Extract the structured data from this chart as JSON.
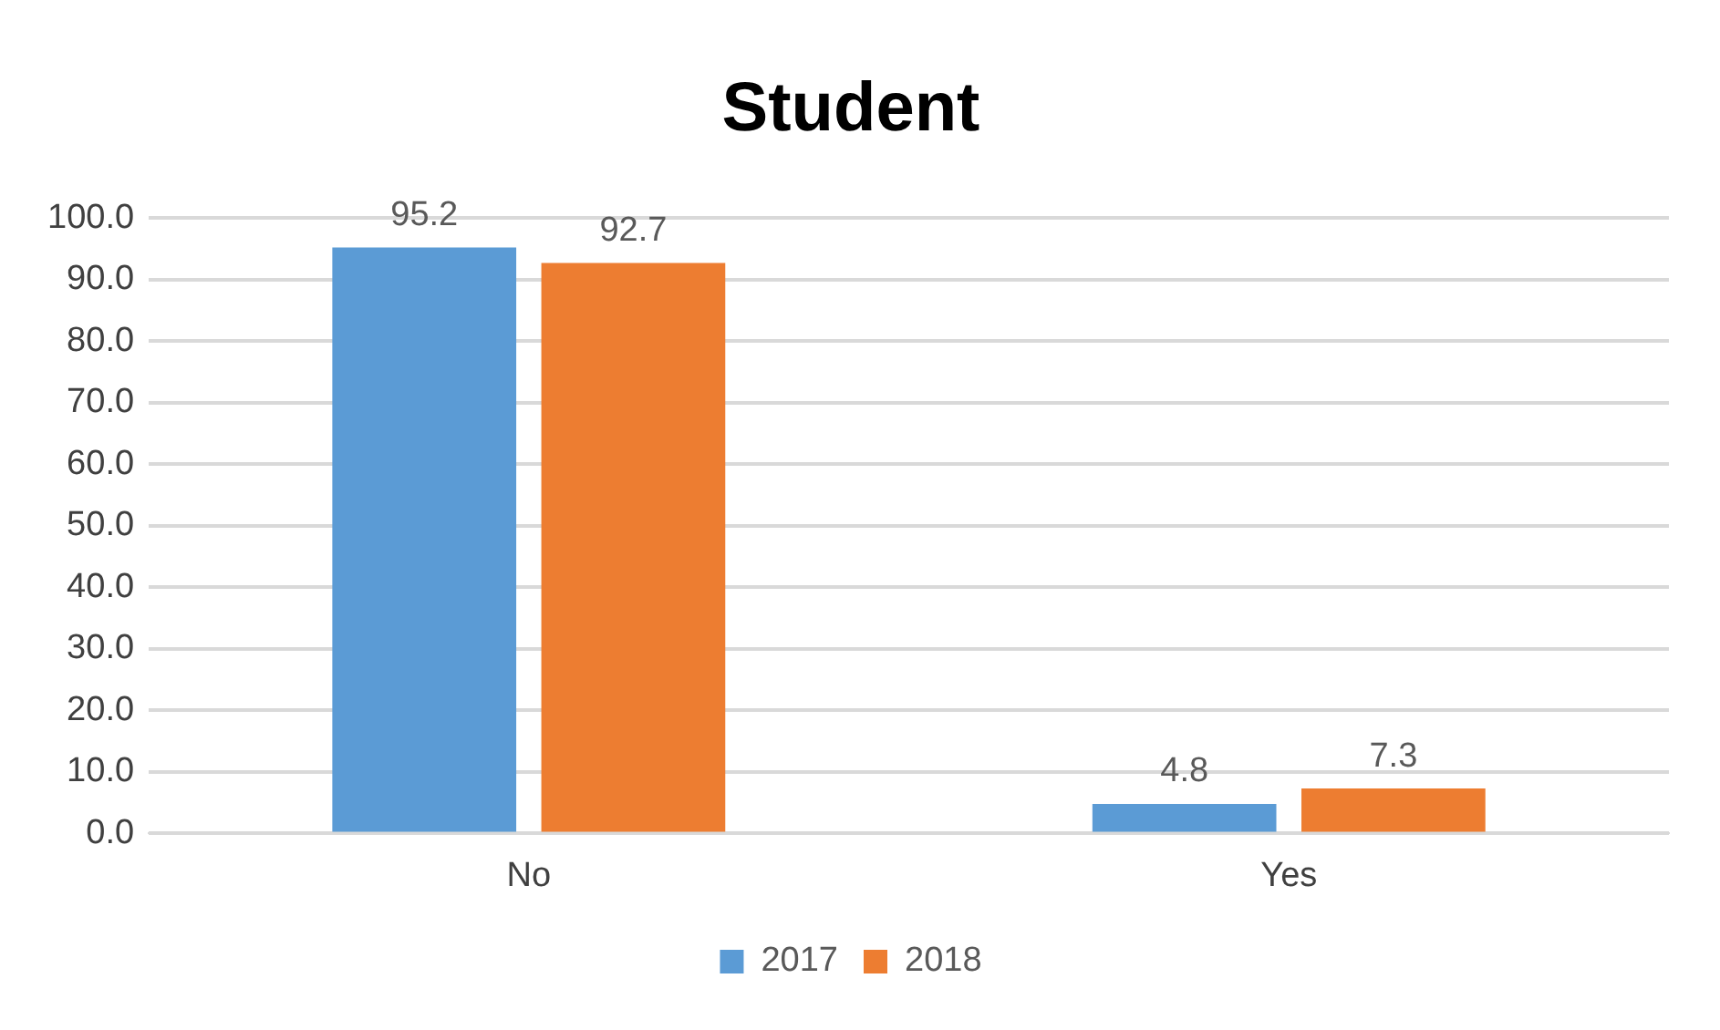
{
  "chart_data": {
    "type": "bar",
    "title": "Student",
    "categories": [
      "No",
      "Yes"
    ],
    "series": [
      {
        "name": "2017",
        "color": "#5b9bd5",
        "values": [
          95.2,
          4.8
        ]
      },
      {
        "name": "2018",
        "color": "#ed7d31",
        "values": [
          92.7,
          7.3
        ]
      }
    ],
    "ylim": [
      0,
      100
    ],
    "yticks": [
      {
        "value": 0,
        "label": "0.0"
      },
      {
        "value": 10,
        "label": "10.0"
      },
      {
        "value": 20,
        "label": "20.0"
      },
      {
        "value": 30,
        "label": "30.0"
      },
      {
        "value": 40,
        "label": "40.0"
      },
      {
        "value": 50,
        "label": "50.0"
      },
      {
        "value": 60,
        "label": "60.0"
      },
      {
        "value": 70,
        "label": "70.0"
      },
      {
        "value": 80,
        "label": "80.0"
      },
      {
        "value": 90,
        "label": "90.0"
      },
      {
        "value": 100,
        "label": "100.0"
      }
    ],
    "grid": "y",
    "legend": "bottom",
    "data_labels": true
  }
}
